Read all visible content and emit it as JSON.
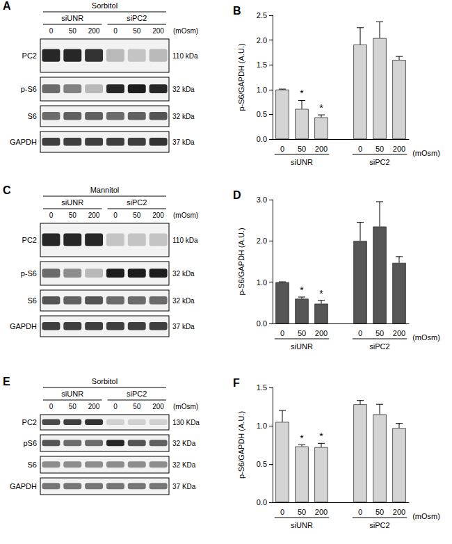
{
  "chart_data": [
    {
      "panel": "B",
      "type": "bar",
      "color": "#d4d4d4",
      "ylabel": "p-S6/GAPDH (A.U.)",
      "categories": [
        "0",
        "50",
        "200",
        null,
        "0",
        "50",
        "200"
      ],
      "values": [
        1.0,
        0.61,
        0.44,
        null,
        1.91,
        2.04,
        1.6
      ],
      "errors": [
        0.01,
        0.17,
        0.05,
        null,
        0.34,
        0.33,
        0.07
      ],
      "annotations": [
        null,
        "*",
        "*",
        null,
        null,
        null,
        null
      ],
      "groups": [
        "siUNR",
        "siPC2"
      ],
      "x_unit": "(mOsm)",
      "ylim": [
        0,
        2.5
      ],
      "yticks": [
        {
          "value": 0,
          "label": "0.0"
        },
        0.5,
        {
          "value": 1,
          "label": "1.0"
        },
        1.5,
        {
          "value": 2,
          "label": "2.0"
        },
        2.5
      ],
      "grid": false
    },
    {
      "panel": "D",
      "type": "bar",
      "color": "#555555",
      "ylabel": "p-S6/GAPDH (A.U.)",
      "categories": [
        "0",
        "50",
        "200",
        null,
        "0",
        "50",
        "200"
      ],
      "values": [
        1.0,
        0.6,
        0.48,
        null,
        2.0,
        2.35,
        1.47
      ],
      "errors": [
        0.01,
        0.04,
        0.08,
        null,
        0.45,
        0.6,
        0.15
      ],
      "annotations": [
        null,
        "*",
        "*",
        null,
        null,
        null,
        null
      ],
      "groups": [
        "siUNR",
        "siPC2"
      ],
      "x_unit": "(mOsm)",
      "ylim": [
        0,
        3
      ],
      "yticks": [
        {
          "value": 0,
          "label": "0.0"
        },
        {
          "value": 1,
          "label": "1.0"
        },
        {
          "value": 2,
          "label": "2.0"
        },
        {
          "value": 3,
          "label": "3.0"
        }
      ],
      "grid": false
    },
    {
      "panel": "F",
      "type": "bar",
      "color": "#d4d4d4",
      "ylabel": "p-S6/GAPDH (A.U.)",
      "categories": [
        "0",
        "50",
        "200",
        null,
        "0",
        "50",
        "200"
      ],
      "values": [
        1.05,
        0.73,
        0.72,
        null,
        1.28,
        1.15,
        0.97
      ],
      "errors": [
        0.15,
        0.02,
        0.05,
        null,
        0.05,
        0.13,
        0.06
      ],
      "annotations": [
        null,
        "*",
        "*",
        null,
        null,
        null,
        null
      ],
      "groups": [
        "siUNR",
        "siPC2"
      ],
      "x_unit": "(mOsm)",
      "ylim": [
        0,
        1.5
      ],
      "yticks": [
        {
          "value": 0,
          "label": "0.0"
        },
        0.5,
        {
          "value": 1,
          "label": "1.0"
        },
        1.5
      ],
      "grid": false
    }
  ],
  "blots": [
    {
      "panel": "A",
      "title": "Sorbitol",
      "groups": [
        "siUNR",
        "siPC2"
      ],
      "lanes": [
        "0",
        "50",
        "200",
        "0",
        "50",
        "200"
      ],
      "unit": "(mOsm)",
      "rows": [
        {
          "label": "PC2",
          "size": "110 kDa",
          "bands": [
            0.9,
            0.9,
            0.85,
            0.25,
            0.2,
            0.25
          ]
        },
        {
          "label": "p-S6",
          "size": "32 kDa",
          "bands": [
            0.6,
            0.5,
            0.25,
            0.9,
            0.95,
            0.9
          ]
        },
        {
          "label": "S6",
          "size": "32 kDa",
          "bands": [
            0.6,
            0.65,
            0.65,
            0.6,
            0.65,
            0.7
          ]
        },
        {
          "label": "GAPDH",
          "size": "37 kDa",
          "bands": [
            0.8,
            0.8,
            0.8,
            0.8,
            0.8,
            0.85
          ]
        }
      ]
    },
    {
      "panel": "C",
      "title": "Mannitol",
      "groups": [
        "siUNR",
        "siPC2"
      ],
      "lanes": [
        "0",
        "50",
        "200",
        "0",
        "50",
        "200"
      ],
      "unit": "(mOsm)",
      "rows": [
        {
          "label": "PC2",
          "size": "110 kDa",
          "bands": [
            0.9,
            0.9,
            0.9,
            0.2,
            0.2,
            0.2
          ]
        },
        {
          "label": "p-S6",
          "size": "32 kDa",
          "bands": [
            0.6,
            0.45,
            0.25,
            0.95,
            0.95,
            0.95
          ]
        },
        {
          "label": "S6",
          "size": "32 kDa",
          "bands": [
            0.7,
            0.65,
            0.7,
            0.6,
            0.6,
            0.6
          ]
        },
        {
          "label": "GAPDH",
          "size": "37 kDa",
          "bands": [
            0.8,
            0.8,
            0.8,
            0.8,
            0.8,
            0.8
          ]
        }
      ]
    },
    {
      "panel": "E",
      "title": "Sorbitol",
      "groups": [
        "siUNR",
        "siPC2"
      ],
      "lanes": [
        "0",
        "50",
        "200",
        "0",
        "50",
        "200"
      ],
      "unit": "(mOsm)",
      "rows": [
        {
          "label": "PC2",
          "size": "130 KDa",
          "bands": [
            0.75,
            0.8,
            0.85,
            0.15,
            0.15,
            0.15
          ]
        },
        {
          "label": "pS6",
          "size": "32 KDa",
          "bands": [
            0.7,
            0.6,
            0.6,
            0.9,
            0.7,
            0.65
          ]
        },
        {
          "label": "S6",
          "size": "32 KDa",
          "bands": [
            0.45,
            0.45,
            0.45,
            0.45,
            0.45,
            0.45
          ]
        },
        {
          "label": "GAPDH",
          "size": "37 KDa",
          "bands": [
            0.55,
            0.55,
            0.55,
            0.55,
            0.55,
            0.55
          ]
        }
      ]
    }
  ]
}
